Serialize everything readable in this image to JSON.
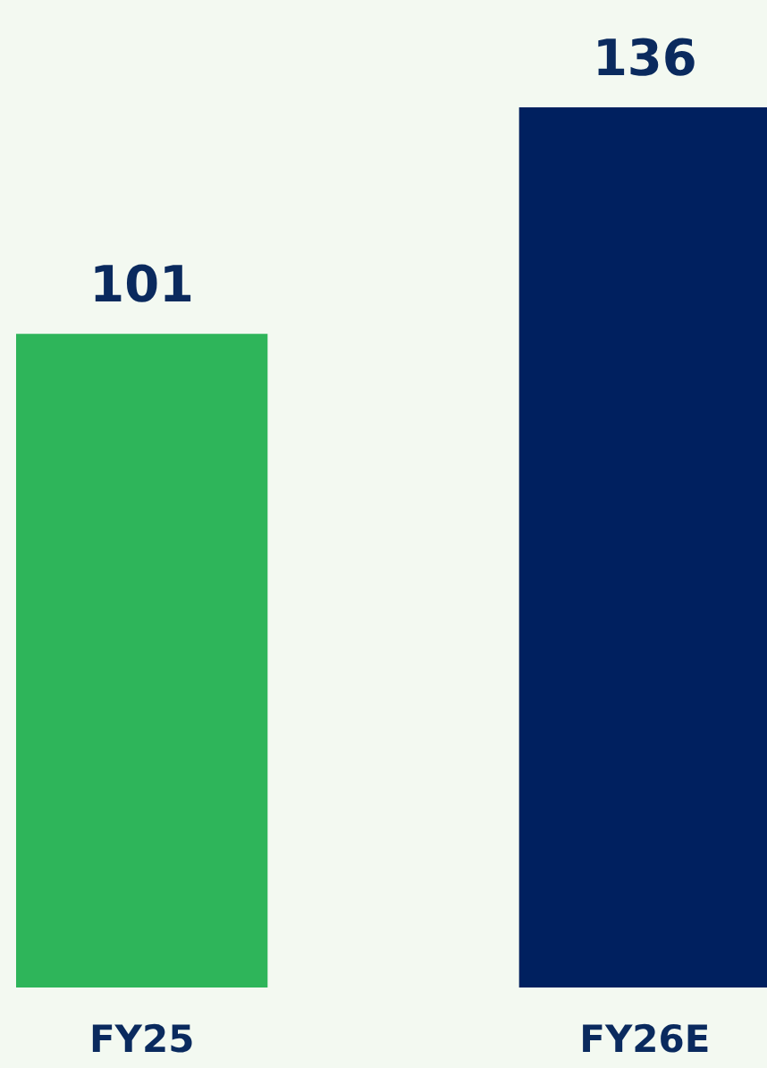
{
  "chart_data": {
    "type": "bar",
    "categories": [
      "FY25",
      "FY26E"
    ],
    "values": [
      101,
      136
    ],
    "colors": [
      "#2eb55a",
      "#00205f"
    ],
    "data_labels": true
  }
}
